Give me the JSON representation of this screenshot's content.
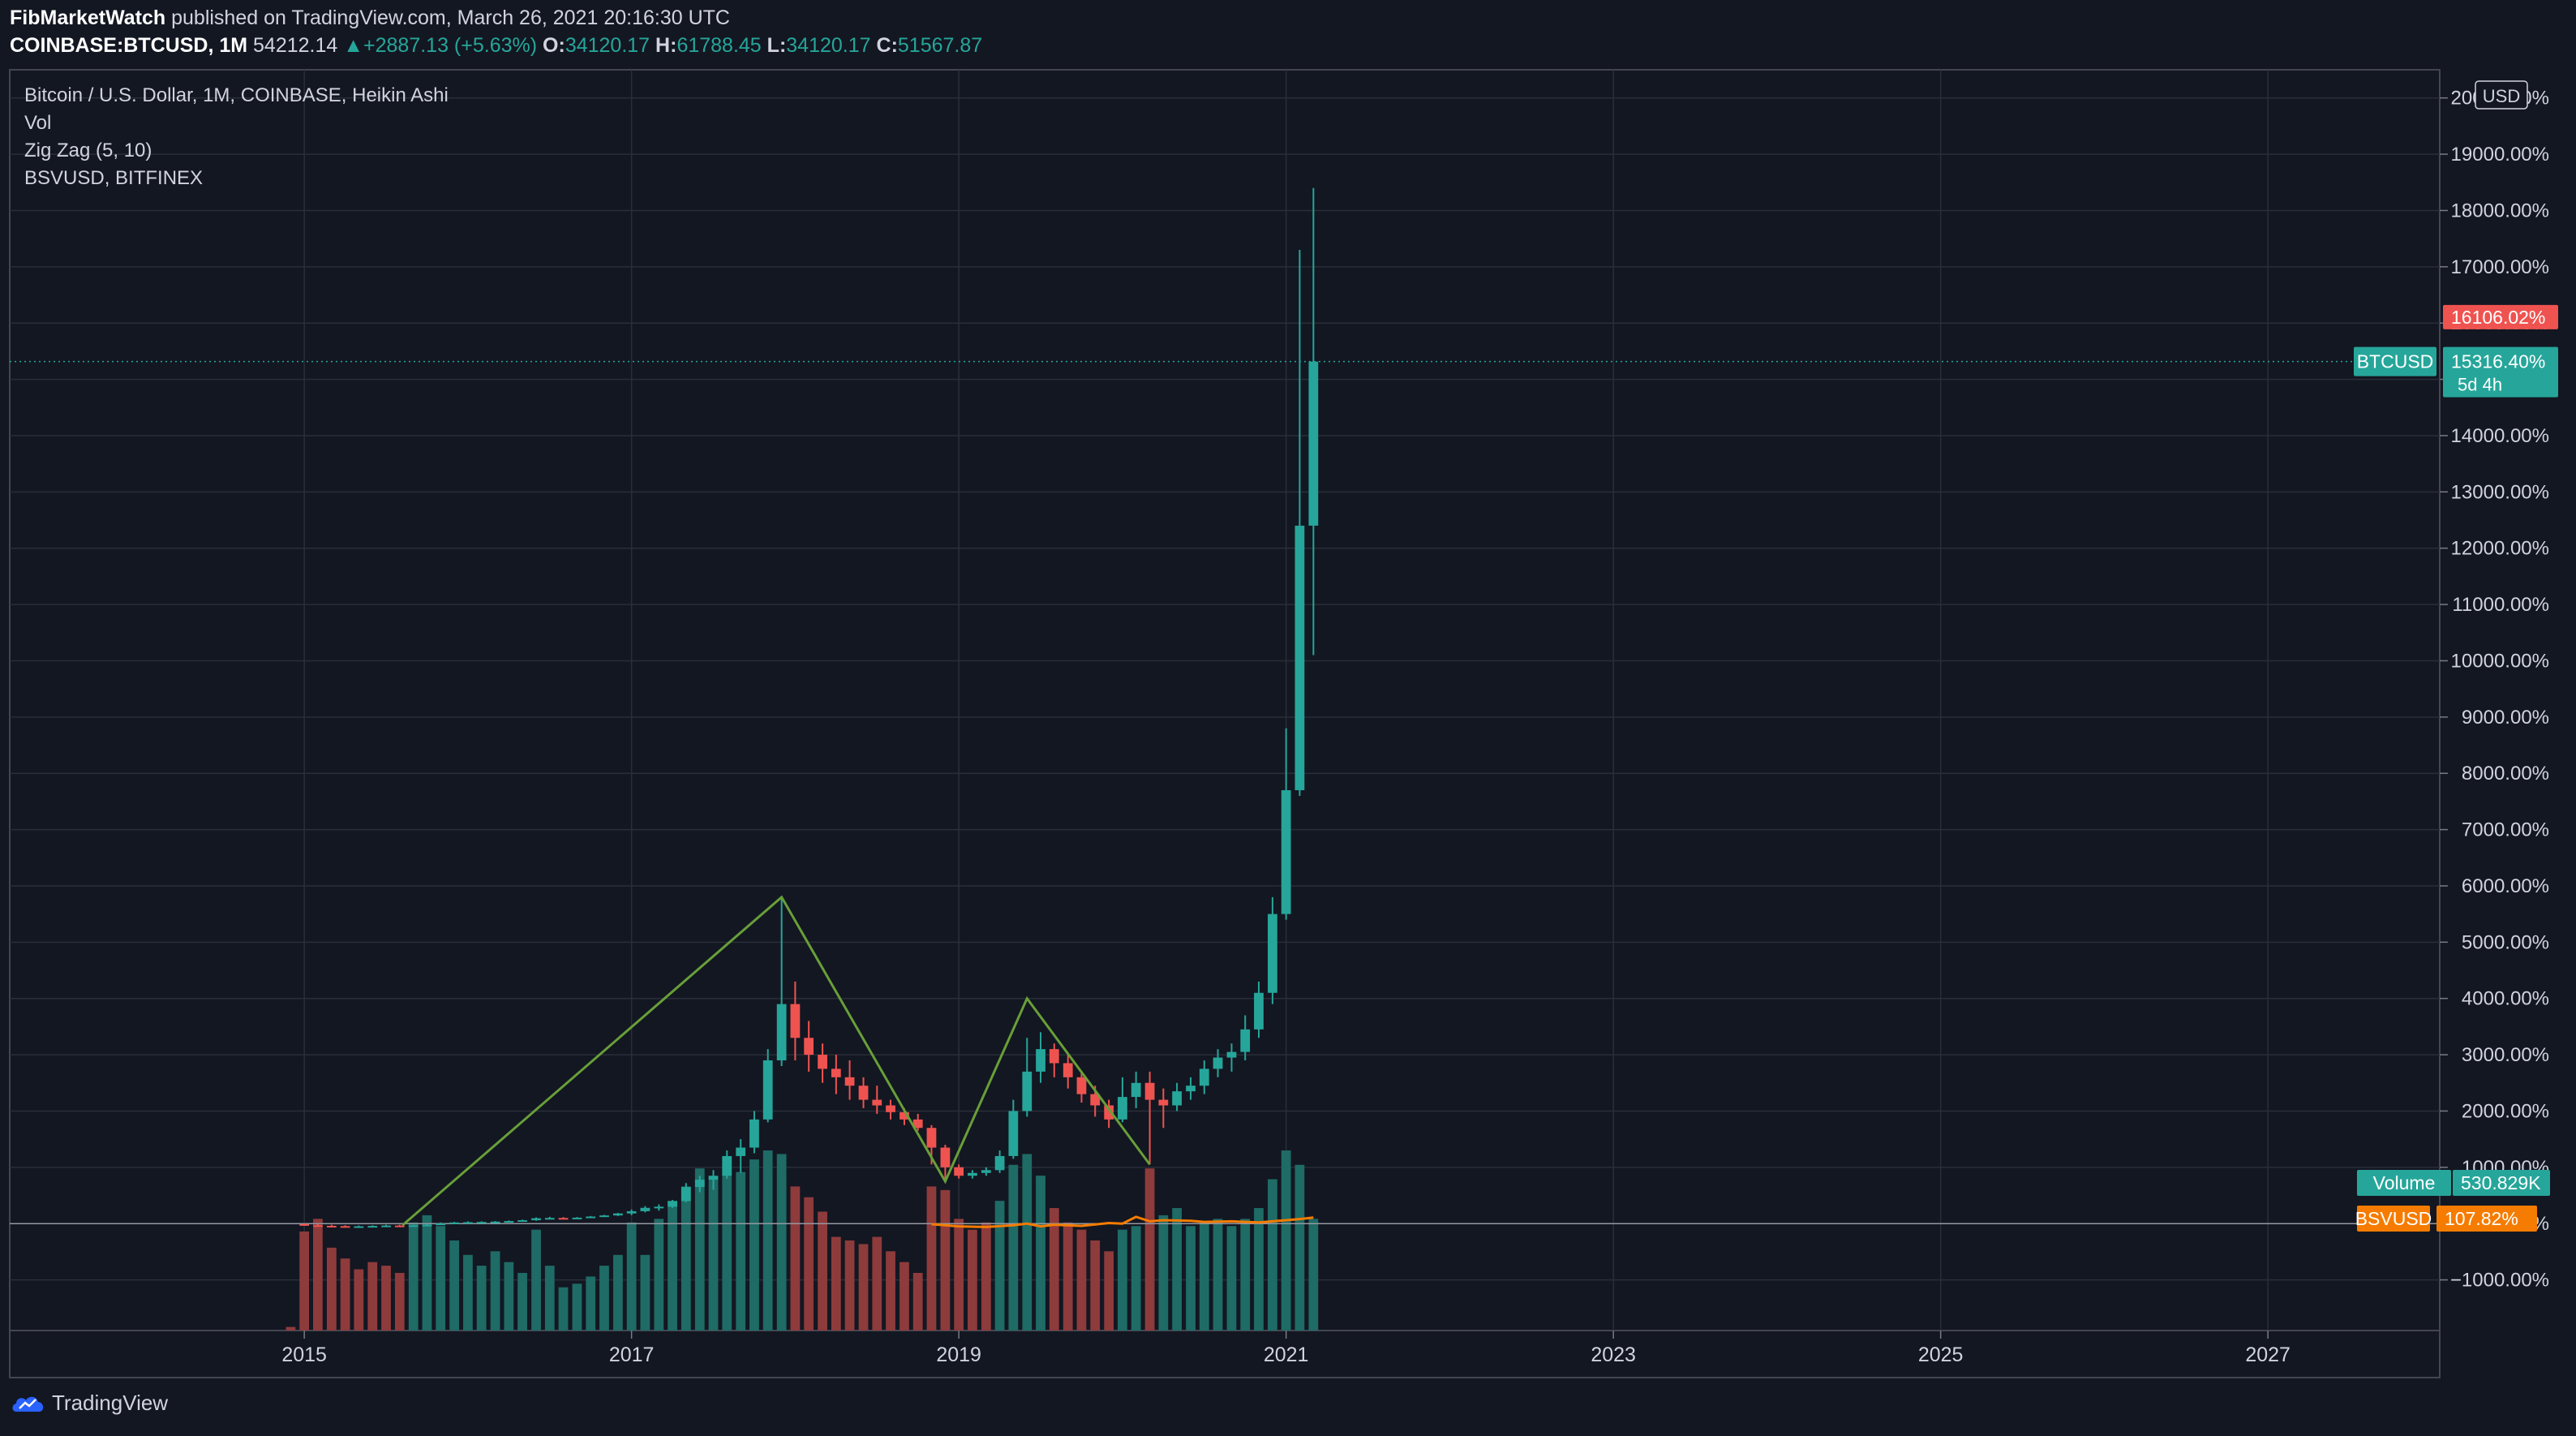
{
  "header": {
    "publisher": "FibMarketWatch",
    "published_text": "published on TradingView.com, March 26, 2021 20:16:30 UTC",
    "symbol": "COINBASE:BTCUSD, 1M",
    "last": "54212.14",
    "change_arrow": "▲",
    "change": "+2887.13 (+5.63%)",
    "o_label": "O:",
    "o_value": "34120.17",
    "h_label": "H:",
    "h_value": "61788.45",
    "l_label": "L:",
    "l_value": "34120.17",
    "c_label": "C:",
    "c_value": "51567.87"
  },
  "legend": {
    "main": "Bitcoin / U.S. Dollar, 1M, COINBASE, Heikin Ashi",
    "vol": "Vol",
    "zigzag": "Zig Zag (5, 10)",
    "compare": "BSVUSD, BITFINEX"
  },
  "price_axis": {
    "currency": "USD",
    "ticks": [
      "20000.00%",
      "19000.00%",
      "18000.00%",
      "17000.00%",
      "16000.00%",
      "15000.00%",
      "14000.00%",
      "13000.00%",
      "12000.00%",
      "11000.00%",
      "10000.00%",
      "9000.00%",
      "8000.00%",
      "7000.00%",
      "6000.00%",
      "5000.00%",
      "4000.00%",
      "3000.00%",
      "2000.00%",
      "1000.00%",
      "0.00%",
      "−1000.00%"
    ]
  },
  "time_axis": {
    "ticks": [
      "2015",
      "2017",
      "2019",
      "2021",
      "2023",
      "2025",
      "2027"
    ]
  },
  "labels": {
    "high_tag": "16106.02%",
    "btc_name": "BTCUSD",
    "btc_value": "15316.40%",
    "btc_countdown": "5d 4h",
    "volume_name": "Volume",
    "volume_value": "530.829K",
    "bsv_name": "BSVUSD",
    "bsv_value": "107.82%"
  },
  "colors": {
    "background": "#131722",
    "grid": "#2a2e39",
    "up": "#26a69a",
    "down": "#ef5350",
    "volume_up": "#1f6b66",
    "volume_down": "#8e3b3c",
    "zigzag": "#689f38",
    "bsv": "#f57c00",
    "high_tag": "#ef5350"
  },
  "footer": {
    "brand": "TradingView",
    "icon": "tradingview-cloud-icon"
  },
  "chart_data": {
    "type": "candlestick",
    "title": "Bitcoin / U.S. Dollar, 1M, COINBASE, Heikin Ashi",
    "y_unit": "percent change",
    "ylim": [
      -1900,
      20500
    ],
    "x_range": [
      2013.2,
      2028.05
    ],
    "grid": true,
    "series": [
      {
        "name": "BTCUSD",
        "kind": "heikin-ashi",
        "columns": [
          "t",
          "o",
          "h",
          "l",
          "c"
        ],
        "values": [
          [
            2015.0,
            -10,
            0,
            -40,
            -30
          ],
          [
            2015.083,
            -30,
            -10,
            -50,
            -40
          ],
          [
            2015.167,
            -40,
            -20,
            -50,
            -45
          ],
          [
            2015.25,
            -45,
            -30,
            -55,
            -50
          ],
          [
            2015.333,
            -50,
            -35,
            -60,
            -48
          ],
          [
            2015.417,
            -48,
            -30,
            -55,
            -42
          ],
          [
            2015.5,
            -42,
            -20,
            -50,
            -35
          ],
          [
            2015.583,
            -35,
            -20,
            -45,
            -38
          ],
          [
            2015.667,
            -38,
            -25,
            -45,
            -30
          ],
          [
            2015.75,
            -30,
            -10,
            -35,
            -20
          ],
          [
            2015.833,
            -20,
            20,
            -25,
            0
          ],
          [
            2015.917,
            0,
            30,
            -10,
            20
          ],
          [
            2016.0,
            20,
            40,
            5,
            25
          ],
          [
            2016.083,
            25,
            40,
            10,
            30
          ],
          [
            2016.167,
            30,
            45,
            20,
            35
          ],
          [
            2016.25,
            35,
            55,
            25,
            45
          ],
          [
            2016.333,
            45,
            70,
            35,
            60
          ],
          [
            2016.417,
            60,
            110,
            50,
            95
          ],
          [
            2016.5,
            95,
            120,
            80,
            100
          ],
          [
            2016.583,
            100,
            115,
            85,
            95
          ],
          [
            2016.667,
            95,
            115,
            90,
            105
          ],
          [
            2016.75,
            105,
            135,
            100,
            125
          ],
          [
            2016.833,
            125,
            155,
            115,
            145
          ],
          [
            2016.917,
            145,
            190,
            135,
            180
          ],
          [
            2017.0,
            180,
            250,
            150,
            220
          ],
          [
            2017.083,
            220,
            310,
            200,
            280
          ],
          [
            2017.167,
            280,
            340,
            230,
            300
          ],
          [
            2017.25,
            300,
            420,
            280,
            400
          ],
          [
            2017.333,
            400,
            720,
            380,
            650
          ],
          [
            2017.417,
            650,
            850,
            560,
            780
          ],
          [
            2017.5,
            780,
            950,
            600,
            850
          ],
          [
            2017.583,
            850,
            1300,
            800,
            1200
          ],
          [
            2017.667,
            1200,
            1500,
            900,
            1350
          ],
          [
            2017.75,
            1350,
            2000,
            1250,
            1850
          ],
          [
            2017.833,
            1850,
            3100,
            1800,
            2900
          ],
          [
            2017.917,
            2900,
            5800,
            2800,
            3900
          ],
          [
            2018.0,
            3900,
            4300,
            2900,
            3300
          ],
          [
            2018.083,
            3300,
            3600,
            2700,
            3000
          ],
          [
            2018.167,
            3000,
            3200,
            2500,
            2750
          ],
          [
            2018.25,
            2750,
            3000,
            2300,
            2600
          ],
          [
            2018.333,
            2600,
            2900,
            2200,
            2450
          ],
          [
            2018.417,
            2450,
            2600,
            2050,
            2200
          ],
          [
            2018.5,
            2200,
            2450,
            1950,
            2100
          ],
          [
            2018.583,
            2100,
            2200,
            1850,
            1980
          ],
          [
            2018.667,
            1980,
            2050,
            1750,
            1850
          ],
          [
            2018.75,
            1850,
            1950,
            1650,
            1700
          ],
          [
            2018.833,
            1700,
            1750,
            1050,
            1350
          ],
          [
            2018.917,
            1350,
            1400,
            750,
            1000
          ],
          [
            2019.0,
            1000,
            1050,
            800,
            850
          ],
          [
            2019.083,
            850,
            950,
            800,
            900
          ],
          [
            2019.167,
            900,
            1000,
            850,
            950
          ],
          [
            2019.25,
            950,
            1300,
            900,
            1200
          ],
          [
            2019.333,
            1200,
            2200,
            1150,
            2000
          ],
          [
            2019.417,
            2000,
            3300,
            1900,
            2700
          ],
          [
            2019.5,
            2700,
            3400,
            2500,
            3100
          ],
          [
            2019.583,
            3100,
            3200,
            2600,
            2850
          ],
          [
            2019.667,
            2850,
            3000,
            2400,
            2600
          ],
          [
            2019.75,
            2600,
            2700,
            2150,
            2300
          ],
          [
            2019.833,
            2300,
            2450,
            1900,
            2100
          ],
          [
            2019.917,
            2100,
            2200,
            1700,
            1850
          ],
          [
            2020.0,
            1850,
            2600,
            1800,
            2250
          ],
          [
            2020.083,
            2250,
            2700,
            2050,
            2500
          ],
          [
            2020.167,
            2500,
            2700,
            1050,
            2200
          ],
          [
            2020.25,
            2200,
            2400,
            1700,
            2100
          ],
          [
            2020.333,
            2100,
            2500,
            2000,
            2350
          ],
          [
            2020.417,
            2350,
            2600,
            2200,
            2450
          ],
          [
            2020.5,
            2450,
            2900,
            2300,
            2750
          ],
          [
            2020.583,
            2750,
            3100,
            2600,
            2950
          ],
          [
            2020.667,
            2950,
            3200,
            2700,
            3050
          ],
          [
            2020.75,
            3050,
            3700,
            2900,
            3450
          ],
          [
            2020.833,
            3450,
            4300,
            3300,
            4100
          ],
          [
            2020.917,
            4100,
            5800,
            3900,
            5500
          ],
          [
            2021.0,
            5500,
            8800,
            5400,
            7700
          ],
          [
            2021.083,
            7700,
            17300,
            7600,
            12400
          ],
          [
            2021.167,
            12400,
            18400,
            10100,
            15316
          ]
        ]
      },
      {
        "name": "Zig Zag (5, 10)",
        "kind": "line",
        "points": [
          [
            2015.6,
            -30
          ],
          [
            2017.917,
            5800
          ],
          [
            2018.917,
            750
          ],
          [
            2019.417,
            4000
          ],
          [
            2020.167,
            1050
          ]
        ]
      },
      {
        "name": "BSVUSD",
        "kind": "line",
        "points": [
          [
            2018.833,
            -10
          ],
          [
            2019.0,
            -50
          ],
          [
            2019.167,
            -60
          ],
          [
            2019.333,
            -30
          ],
          [
            2019.417,
            0
          ],
          [
            2019.5,
            -50
          ],
          [
            2019.583,
            -20
          ],
          [
            2019.75,
            -40
          ],
          [
            2019.917,
            10
          ],
          [
            2020.0,
            0
          ],
          [
            2020.083,
            120
          ],
          [
            2020.167,
            40
          ],
          [
            2020.25,
            60
          ],
          [
            2020.417,
            50
          ],
          [
            2020.5,
            30
          ],
          [
            2020.667,
            40
          ],
          [
            2020.833,
            20
          ],
          [
            2020.917,
            40
          ],
          [
            2021.0,
            60
          ],
          [
            2021.083,
            80
          ],
          [
            2021.167,
            107.82
          ]
        ]
      },
      {
        "name": "Volume",
        "kind": "histogram",
        "columns": [
          "t",
          "v",
          "dir"
        ],
        "values": [
          [
            2014.917,
            0.02,
            "d"
          ],
          [
            2015.0,
            0.55,
            "d"
          ],
          [
            2015.083,
            0.62,
            "d"
          ],
          [
            2015.167,
            0.46,
            "d"
          ],
          [
            2015.25,
            0.4,
            "d"
          ],
          [
            2015.333,
            0.34,
            "d"
          ],
          [
            2015.417,
            0.38,
            "d"
          ],
          [
            2015.5,
            0.36,
            "d"
          ],
          [
            2015.583,
            0.32,
            "d"
          ],
          [
            2015.667,
            0.6,
            "u"
          ],
          [
            2015.75,
            0.64,
            "u"
          ],
          [
            2015.833,
            0.58,
            "u"
          ],
          [
            2015.917,
            0.5,
            "u"
          ],
          [
            2016.0,
            0.42,
            "u"
          ],
          [
            2016.083,
            0.36,
            "u"
          ],
          [
            2016.167,
            0.44,
            "u"
          ],
          [
            2016.25,
            0.38,
            "u"
          ],
          [
            2016.333,
            0.32,
            "u"
          ],
          [
            2016.417,
            0.56,
            "u"
          ],
          [
            2016.5,
            0.36,
            "u"
          ],
          [
            2016.583,
            0.24,
            "u"
          ],
          [
            2016.667,
            0.26,
            "u"
          ],
          [
            2016.75,
            0.3,
            "u"
          ],
          [
            2016.833,
            0.36,
            "u"
          ],
          [
            2016.917,
            0.42,
            "u"
          ],
          [
            2017.0,
            0.6,
            "u"
          ],
          [
            2017.083,
            0.42,
            "u"
          ],
          [
            2017.167,
            0.62,
            "u"
          ],
          [
            2017.25,
            0.72,
            "u"
          ],
          [
            2017.333,
            0.8,
            "u"
          ],
          [
            2017.417,
            0.9,
            "u"
          ],
          [
            2017.5,
            0.84,
            "u"
          ],
          [
            2017.583,
            0.96,
            "u"
          ],
          [
            2017.667,
            0.88,
            "u"
          ],
          [
            2017.75,
            0.95,
            "u"
          ],
          [
            2017.833,
            1.0,
            "u"
          ],
          [
            2017.917,
            0.98,
            "u"
          ],
          [
            2018.0,
            0.8,
            "d"
          ],
          [
            2018.083,
            0.74,
            "d"
          ],
          [
            2018.167,
            0.66,
            "d"
          ],
          [
            2018.25,
            0.52,
            "d"
          ],
          [
            2018.333,
            0.5,
            "d"
          ],
          [
            2018.417,
            0.48,
            "d"
          ],
          [
            2018.5,
            0.52,
            "d"
          ],
          [
            2018.583,
            0.44,
            "d"
          ],
          [
            2018.667,
            0.38,
            "d"
          ],
          [
            2018.75,
            0.32,
            "d"
          ],
          [
            2018.833,
            0.8,
            "d"
          ],
          [
            2018.917,
            0.78,
            "d"
          ],
          [
            2019.0,
            0.62,
            "d"
          ],
          [
            2019.083,
            0.56,
            "d"
          ],
          [
            2019.167,
            0.6,
            "d"
          ],
          [
            2019.25,
            0.72,
            "u"
          ],
          [
            2019.333,
            0.92,
            "u"
          ],
          [
            2019.417,
            0.98,
            "u"
          ],
          [
            2019.5,
            0.86,
            "u"
          ],
          [
            2019.583,
            0.68,
            "d"
          ],
          [
            2019.667,
            0.6,
            "d"
          ],
          [
            2019.75,
            0.56,
            "d"
          ],
          [
            2019.833,
            0.5,
            "d"
          ],
          [
            2019.917,
            0.44,
            "d"
          ],
          [
            2020.0,
            0.56,
            "u"
          ],
          [
            2020.083,
            0.58,
            "u"
          ],
          [
            2020.167,
            0.9,
            "d"
          ],
          [
            2020.25,
            0.64,
            "u"
          ],
          [
            2020.333,
            0.68,
            "u"
          ],
          [
            2020.417,
            0.58,
            "u"
          ],
          [
            2020.5,
            0.6,
            "u"
          ],
          [
            2020.583,
            0.62,
            "u"
          ],
          [
            2020.667,
            0.58,
            "u"
          ],
          [
            2020.75,
            0.62,
            "u"
          ],
          [
            2020.833,
            0.68,
            "u"
          ],
          [
            2020.917,
            0.84,
            "u"
          ],
          [
            2021.0,
            1.0,
            "u"
          ],
          [
            2021.083,
            0.92,
            "u"
          ],
          [
            2021.167,
            0.62,
            "u"
          ]
        ]
      }
    ]
  }
}
